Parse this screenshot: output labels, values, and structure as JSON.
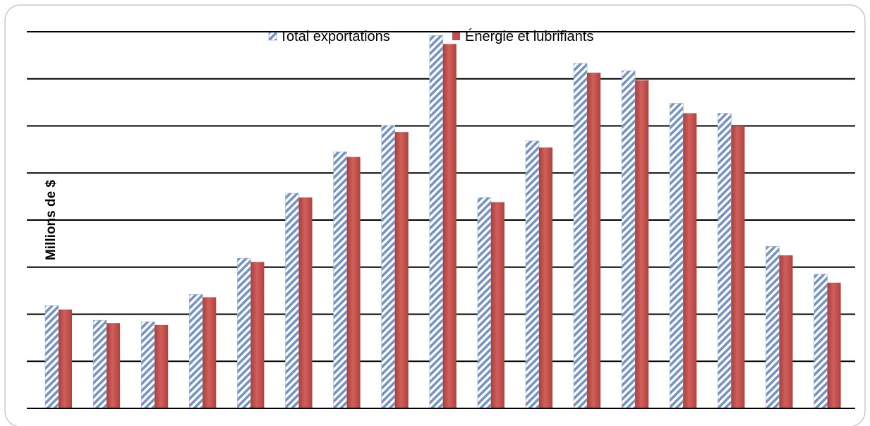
{
  "chart_data": {
    "type": "bar",
    "title": "",
    "xlabel": "",
    "ylabel": "Millions de $",
    "ylim": [
      0,
      8
    ],
    "grid": true,
    "legend_position": "top",
    "categories": [
      "",
      "",
      "",
      "",
      "",
      "",
      "",
      "",
      "",
      "",
      "",
      "",
      "",
      "",
      "",
      "",
      ""
    ],
    "series": [
      {
        "name": "Total exportations",
        "color": "#6E8EBF",
        "pattern": "diagonal-hatch",
        "values": [
          2.18,
          1.87,
          1.84,
          2.42,
          3.19,
          4.57,
          5.45,
          6.01,
          7.92,
          4.48,
          5.68,
          7.33,
          7.17,
          6.48,
          6.27,
          3.44,
          2.85
        ]
      },
      {
        "name": "Énergie et lubrifiants",
        "color": "#C0504D",
        "pattern": "solid",
        "values": [
          2.1,
          1.81,
          1.77,
          2.36,
          3.11,
          4.48,
          5.34,
          5.87,
          7.74,
          4.38,
          5.54,
          7.13,
          6.97,
          6.27,
          6.0,
          3.25,
          2.67
        ]
      }
    ]
  }
}
